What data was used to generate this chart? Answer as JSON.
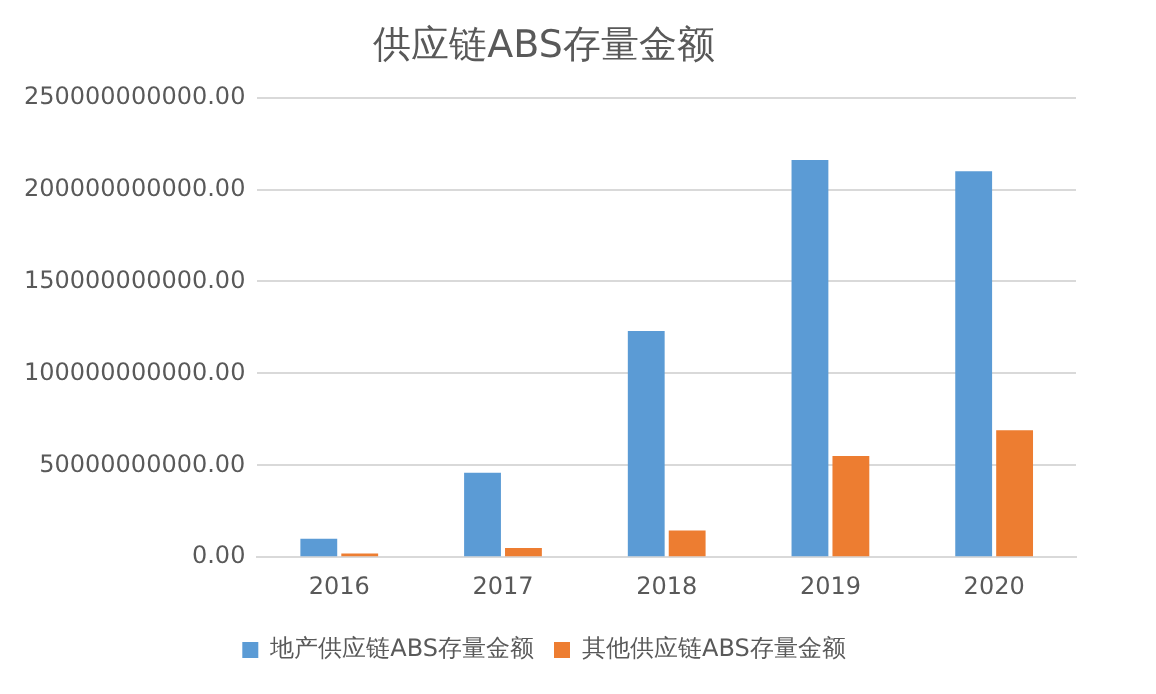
{
  "chart_data": {
    "type": "bar",
    "title": "供应链ABS存量金额",
    "categories": [
      "2016",
      "2017",
      "2018",
      "2019",
      "2020"
    ],
    "series": [
      {
        "name": "地产供应链ABS存量金额",
        "color": "#5b9bd5",
        "values": [
          10000000000,
          46000000000,
          123000000000,
          216000000000,
          210000000000
        ]
      },
      {
        "name": "其他供应链ABS存量金额",
        "color": "#ed7d31",
        "values": [
          2000000000,
          5000000000,
          14500000000,
          55000000000,
          69000000000
        ]
      }
    ],
    "ylim": [
      0,
      250000000000
    ],
    "yticks": [
      {
        "value": 0,
        "label": "0.00"
      },
      {
        "value": 50000000000,
        "label": "50000000000.00"
      },
      {
        "value": 100000000000,
        "label": "100000000000.00"
      },
      {
        "value": 150000000000,
        "label": "150000000000.00"
      },
      {
        "value": 200000000000,
        "label": "200000000000.00"
      },
      {
        "value": 250000000000,
        "label": "250000000000.00"
      }
    ],
    "grid": "y",
    "legend": "bottom"
  }
}
